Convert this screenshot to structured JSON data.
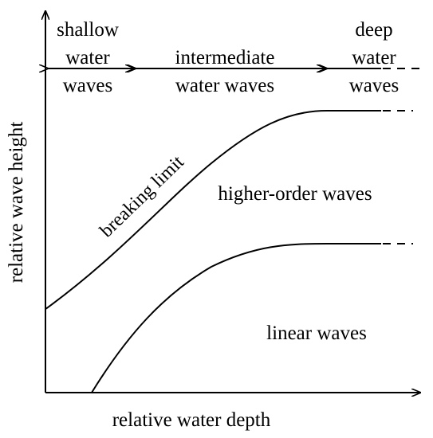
{
  "diagram": {
    "axes": {
      "x_label": "relative water depth",
      "y_label": "relative wave height"
    },
    "zones": [
      {
        "name": "shallow",
        "lines": [
          "shallow",
          "water",
          "waves"
        ]
      },
      {
        "name": "intermediate",
        "lines": [
          "intermediate",
          "water waves"
        ]
      },
      {
        "name": "deep",
        "lines": [
          "deep",
          "water",
          "waves"
        ]
      }
    ],
    "regions": {
      "upper": "higher-order waves",
      "lower": "linear waves"
    },
    "curves": {
      "upper_label": "breaking limit"
    },
    "colors": {
      "ink": "#000000",
      "background": "#ffffff"
    }
  }
}
